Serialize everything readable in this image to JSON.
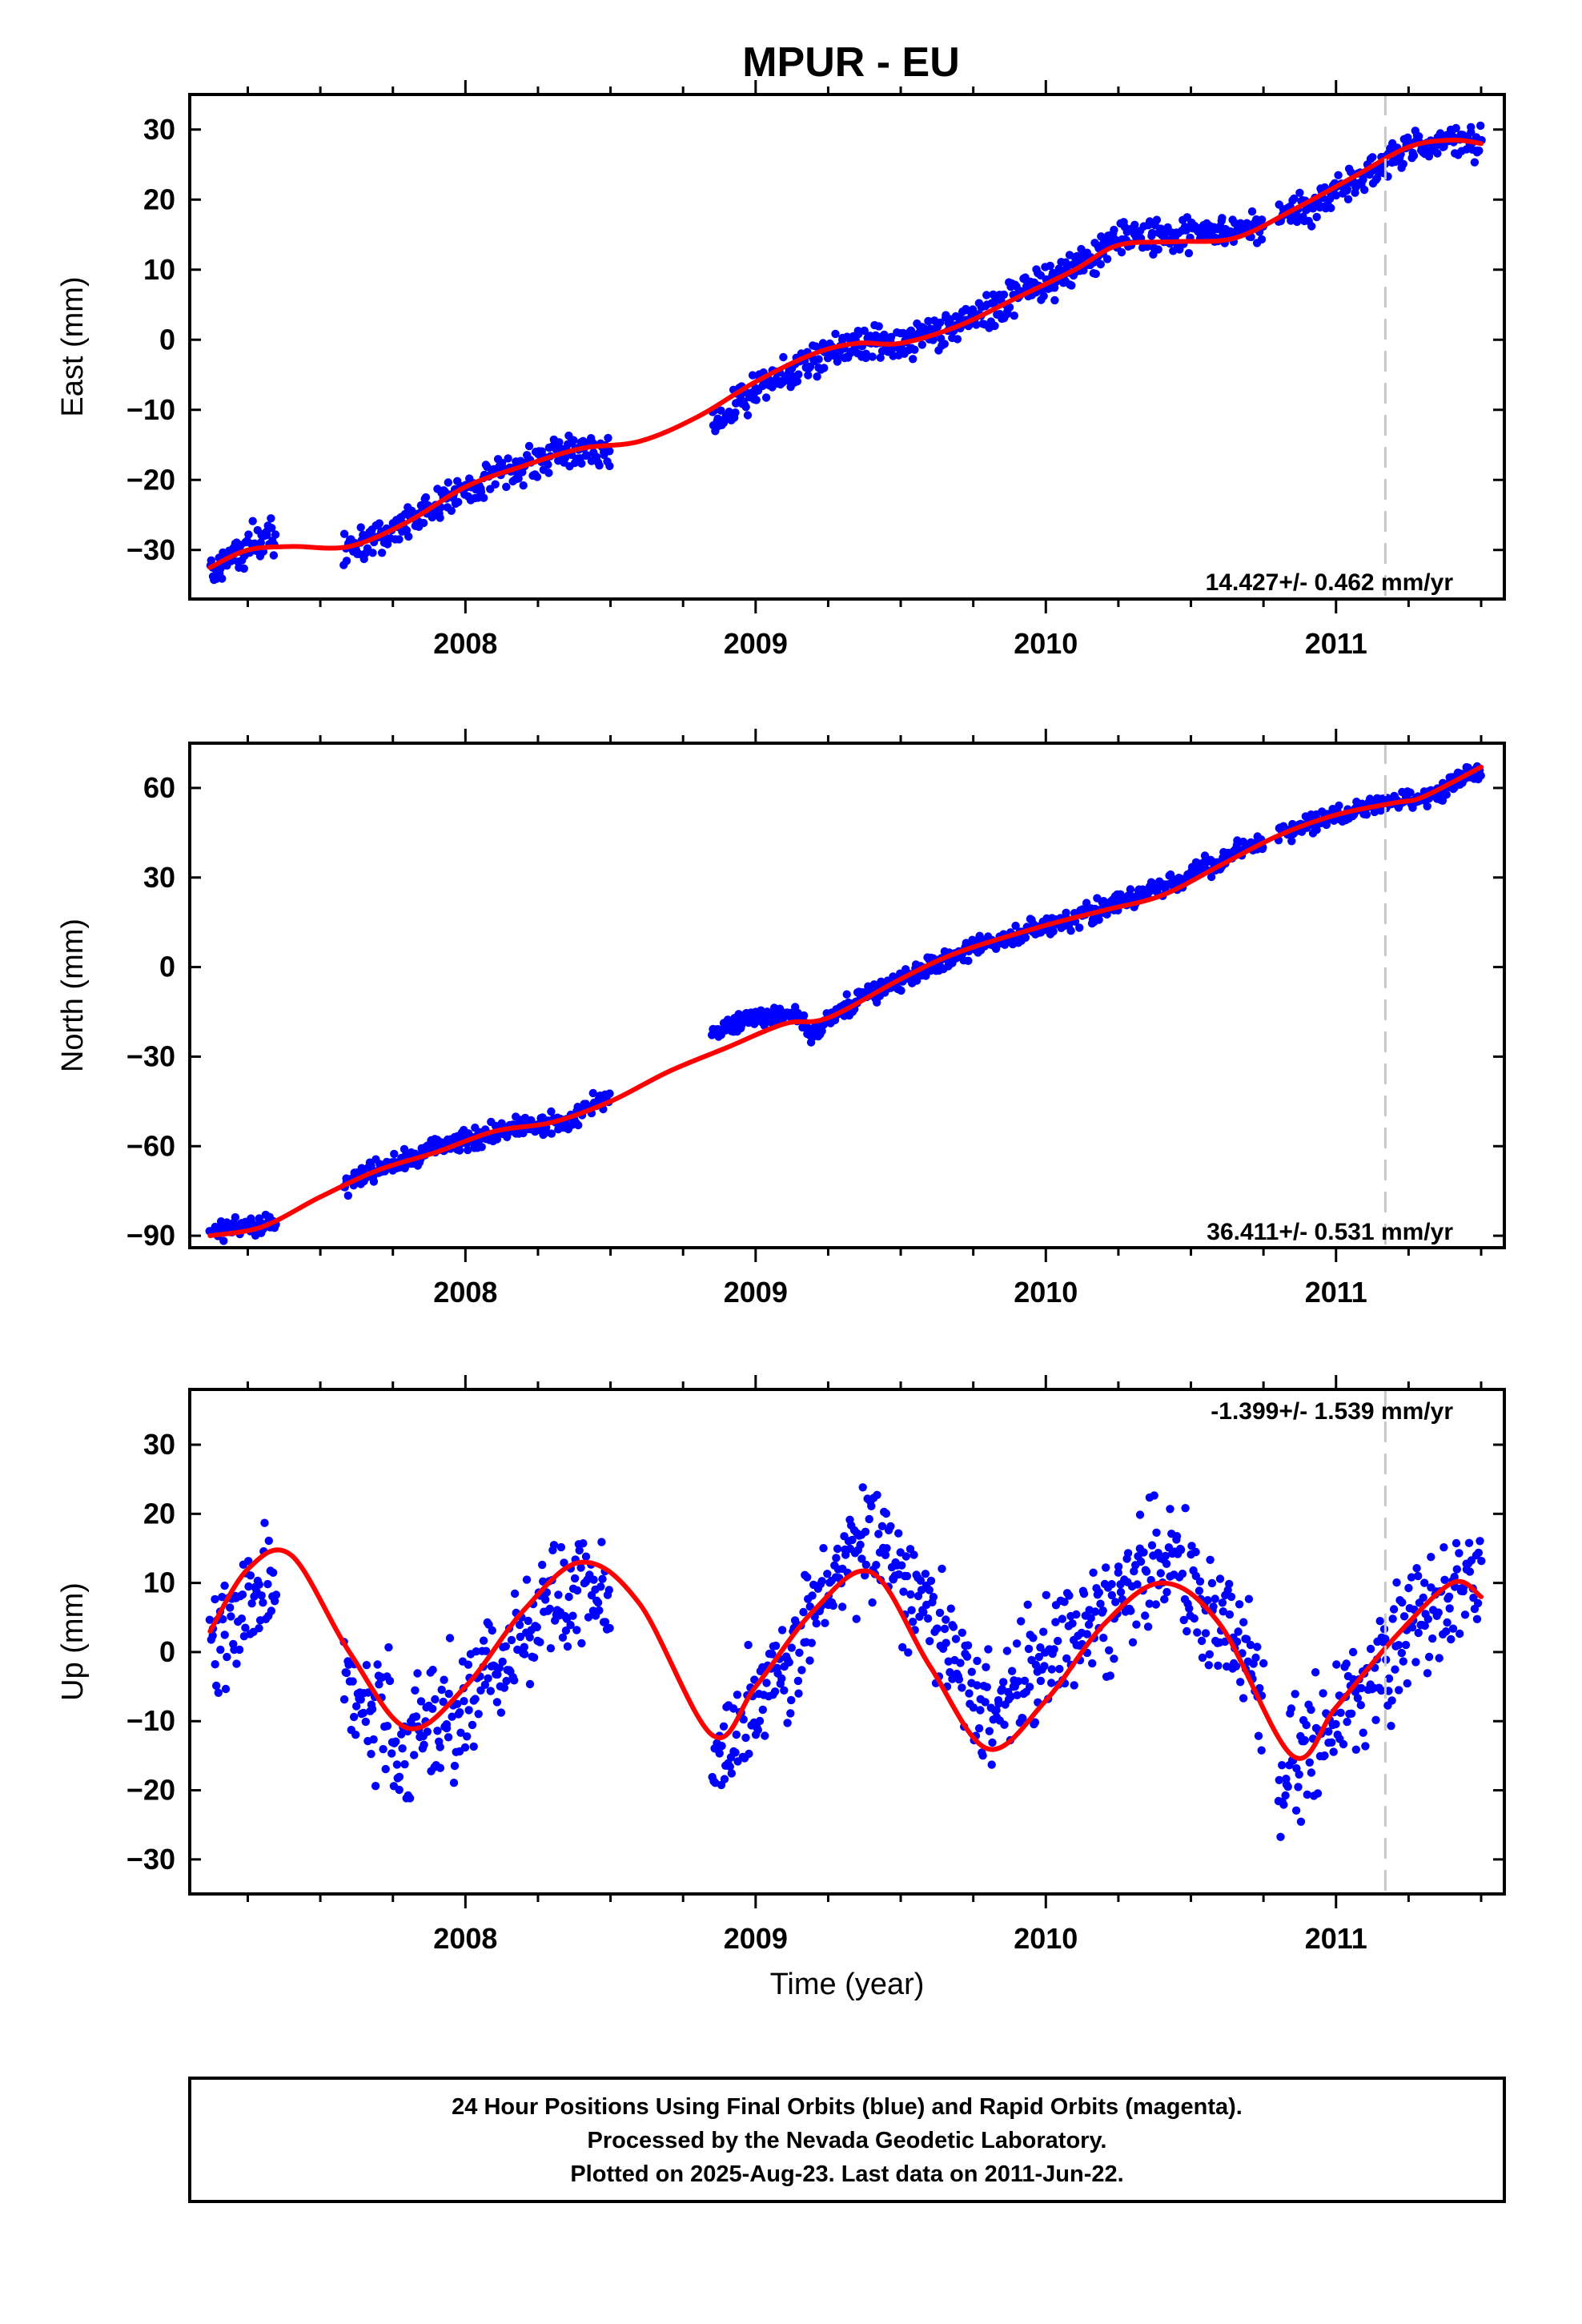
{
  "title": "MPUR - EU",
  "xlabel": "Time (year)",
  "footer": [
    "24 Hour Positions Using Final Orbits (blue) and Rapid Orbits (magenta).",
    "Processed by the Nevada Geodetic Laboratory.",
    "Plotted on 2025-Aug-23. Last data on 2011-Jun-22."
  ],
  "colors": {
    "points": "#0000ff",
    "fit": "#ff0000",
    "dashed_line": "#c8c8c8"
  },
  "chart_data": [
    {
      "type": "scatter",
      "component": "East",
      "ylabel": "East (mm)",
      "rate": "14.427+/- 0.462 mm/yr",
      "xlim": [
        2007.05,
        2011.58
      ],
      "ylim": [
        -37,
        35
      ],
      "x_ticks": [
        2008,
        2009,
        2010,
        2011
      ],
      "y_ticks": [
        -30,
        -20,
        -10,
        0,
        10,
        20,
        30
      ],
      "marker_epoch": 2011.17,
      "gaps": [
        [
          2007.35,
          2007.58
        ],
        [
          2008.5,
          2008.85
        ],
        [
          2010.75,
          2010.8
        ]
      ],
      "series": [
        {
          "role": "fit",
          "x": [
            2007.12,
            2007.25,
            2007.4,
            2007.6,
            2007.8,
            2008.0,
            2008.2,
            2008.4,
            2008.6,
            2008.8,
            2009.0,
            2009.2,
            2009.35,
            2009.5,
            2009.7,
            2009.9,
            2010.1,
            2010.25,
            2010.45,
            2010.65,
            2010.85,
            2011.05,
            2011.25,
            2011.4,
            2011.5
          ],
          "y": [
            -32.5,
            -30,
            -29.5,
            -29.5,
            -26,
            -21,
            -18,
            -15.5,
            -14.5,
            -11,
            -6,
            -2,
            -0.5,
            -0.5,
            2,
            6,
            10,
            13.5,
            14,
            14.5,
            18.5,
            23,
            27.5,
            28.5,
            28
          ]
        },
        {
          "role": "trend_noise",
          "x": [
            2007.12,
            2007.25,
            2007.35,
            2007.58,
            2007.8,
            2008.0,
            2008.2,
            2008.35,
            2008.5,
            2008.85,
            2009.0,
            2009.2,
            2009.35,
            2009.5,
            2009.7,
            2009.9,
            2010.1,
            2010.25,
            2010.45,
            2010.75,
            2010.8,
            2011.05,
            2011.25,
            2011.4,
            2011.5
          ],
          "y": [
            -33,
            -29.5,
            -28,
            -30,
            -26,
            -21,
            -18,
            -16,
            -16.5,
            -12,
            -7,
            -2.5,
            -0.5,
            -0.5,
            2,
            6.5,
            10,
            15,
            15,
            16,
            17,
            22,
            27.5,
            28.5,
            28
          ],
          "noise": 1.3
        }
      ]
    },
    {
      "type": "scatter",
      "component": "North",
      "ylabel": "North (mm)",
      "rate": "36.411+/- 0.531 mm/yr",
      "xlim": [
        2007.05,
        2011.58
      ],
      "ylim": [
        -94,
        75
      ],
      "x_ticks": [
        2008,
        2009,
        2010,
        2011
      ],
      "y_ticks": [
        -90,
        -60,
        -30,
        0,
        30,
        60
      ],
      "marker_epoch": 2011.17,
      "gaps": [
        [
          2007.35,
          2007.58
        ],
        [
          2008.5,
          2008.85
        ],
        [
          2010.75,
          2010.8
        ]
      ],
      "series": [
        {
          "role": "fit",
          "x": [
            2007.12,
            2007.3,
            2007.5,
            2007.7,
            2007.9,
            2008.1,
            2008.3,
            2008.5,
            2008.7,
            2008.9,
            2009.1,
            2009.25,
            2009.5,
            2009.7,
            2010.0,
            2010.2,
            2010.4,
            2010.6,
            2010.8,
            2011.0,
            2011.2,
            2011.3,
            2011.5
          ],
          "y": [
            -90,
            -87,
            -77,
            -68,
            -62,
            -55,
            -52,
            -45,
            -35,
            -27,
            -19,
            -17,
            -4,
            5,
            14,
            19,
            24,
            34,
            44,
            51,
            55,
            57,
            67
          ]
        },
        {
          "role": "trend_noise",
          "x": [
            2007.12,
            2007.3,
            2007.35,
            2007.58,
            2007.8,
            2008.0,
            2008.2,
            2008.35,
            2008.5,
            2008.85,
            2009.0,
            2009.15,
            2009.2,
            2009.3,
            2009.5,
            2009.7,
            2010.0,
            2010.2,
            2010.4,
            2010.6,
            2010.8,
            2011.0,
            2011.2,
            2011.35,
            2011.5
          ],
          "y": [
            -88,
            -86.5,
            -86,
            -73,
            -64,
            -58,
            -53,
            -52,
            -42,
            -22,
            -16,
            -16,
            -22,
            -14,
            -4,
            5,
            14,
            19,
            27,
            36,
            45,
            51,
            55,
            58,
            67
          ],
          "noise": 1.8
        }
      ]
    },
    {
      "type": "scatter",
      "component": "Up",
      "ylabel": "Up (mm)",
      "rate": "-1.399+/- 1.539 mm/yr",
      "xlim": [
        2007.05,
        2011.58
      ],
      "ylim": [
        -35,
        38
      ],
      "x_ticks": [
        2008,
        2009,
        2010,
        2011
      ],
      "y_ticks": [
        -30,
        -20,
        -10,
        0,
        10,
        20,
        30
      ],
      "marker_epoch": 2011.17,
      "gaps": [
        [
          2007.35,
          2007.58
        ],
        [
          2008.5,
          2008.85
        ],
        [
          2010.75,
          2010.8
        ]
      ],
      "series": [
        {
          "role": "fit",
          "x": [
            2007.12,
            2007.25,
            2007.4,
            2007.6,
            2007.8,
            2008.0,
            2008.2,
            2008.4,
            2008.6,
            2008.85,
            2009.0,
            2009.2,
            2009.4,
            2009.6,
            2009.8,
            2010.0,
            2010.2,
            2010.4,
            2010.6,
            2010.85,
            2011.0,
            2011.2,
            2011.4,
            2011.5
          ],
          "y": [
            3,
            12,
            14,
            0,
            -11,
            -5,
            6,
            13,
            7,
            -12,
            -5,
            6,
            11.5,
            -2,
            -14,
            -7,
            4,
            10,
            4,
            -15,
            -8,
            2,
            10,
            8
          ]
        },
        {
          "role": "trend_noise",
          "x": [
            2007.12,
            2007.25,
            2007.35,
            2007.58,
            2007.8,
            2008.0,
            2008.2,
            2008.4,
            2008.5,
            2008.85,
            2009.0,
            2009.2,
            2009.4,
            2009.6,
            2009.8,
            2010.0,
            2010.2,
            2010.4,
            2010.6,
            2010.75,
            2010.8,
            2011.0,
            2011.2,
            2011.4,
            2011.5
          ],
          "y": [
            1,
            7,
            10,
            -3,
            -14,
            -7,
            4,
            10,
            8,
            -17,
            -8,
            6,
            18,
            5,
            -10,
            -2,
            6,
            14,
            4,
            -5,
            -18,
            -10,
            1,
            10,
            12
          ],
          "noise": 4.5
        }
      ]
    }
  ]
}
